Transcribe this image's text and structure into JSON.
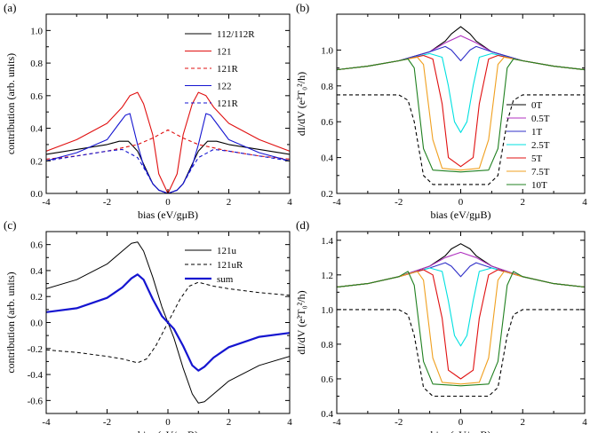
{
  "chart_data": [
    {
      "panel": "(a)",
      "type": "line",
      "xlabel": "bias (eV/gμB)",
      "ylabel": "contribution (arb. units)",
      "xlim": [
        -4,
        4
      ],
      "ylim": [
        0,
        1.1
      ],
      "xticks": [
        -4,
        -2,
        0,
        2,
        4
      ],
      "yticks": [
        0,
        0.2,
        0.4,
        0.6,
        0.8,
        1.0
      ],
      "ytick_labels": [
        "0.0",
        "0.2",
        "0.4",
        "0.6",
        "0.8",
        "1.0"
      ],
      "legend_position": "top-right",
      "series": [
        {
          "name": "112/112R",
          "color": "#000000",
          "dash": "solid",
          "x": [
            -4,
            -3,
            -2,
            -1.6,
            -1.3,
            -1,
            -0.8,
            -0.5,
            -0.3,
            0,
            0.3,
            0.5,
            0.8,
            1,
            1.3,
            1.6,
            2,
            3,
            4
          ],
          "y": [
            0.24,
            0.27,
            0.3,
            0.32,
            0.32,
            0.26,
            0.18,
            0.06,
            0.02,
            0,
            0.02,
            0.06,
            0.18,
            0.26,
            0.32,
            0.32,
            0.3,
            0.27,
            0.24
          ]
        },
        {
          "name": "121",
          "color": "#e01010",
          "dash": "solid",
          "x": [
            -4,
            -3,
            -2,
            -1.5,
            -1.25,
            -1.0,
            -0.8,
            -0.5,
            -0.3,
            0,
            0.3,
            0.5,
            0.8,
            1.0,
            1.25,
            1.5,
            2,
            3,
            4
          ],
          "y": [
            0.26,
            0.33,
            0.43,
            0.53,
            0.6,
            0.62,
            0.55,
            0.36,
            0.12,
            0,
            0.12,
            0.36,
            0.55,
            0.62,
            0.6,
            0.53,
            0.43,
            0.33,
            0.26
          ]
        },
        {
          "name": "121R",
          "color": "#e01010",
          "dash": "dashed",
          "x": [
            -4,
            -3,
            -2,
            -1,
            -0.5,
            0,
            0.5,
            1,
            2,
            3,
            4
          ],
          "y": [
            0.21,
            0.23,
            0.26,
            0.3,
            0.34,
            0.39,
            0.34,
            0.3,
            0.26,
            0.23,
            0.21
          ]
        },
        {
          "name": "122",
          "color": "#1515d0",
          "dash": "solid",
          "x": [
            -4,
            -3,
            -2,
            -1.6,
            -1.4,
            -1.25,
            -1.0,
            -0.8,
            -0.5,
            -0.3,
            0,
            0.3,
            0.5,
            0.8,
            1.0,
            1.25,
            1.4,
            1.6,
            2,
            3,
            4
          ],
          "y": [
            0.2,
            0.25,
            0.33,
            0.43,
            0.48,
            0.49,
            0.3,
            0.17,
            0.06,
            0.02,
            0,
            0.02,
            0.06,
            0.17,
            0.3,
            0.49,
            0.48,
            0.43,
            0.33,
            0.25,
            0.2
          ]
        },
        {
          "name": "121R",
          "color": "#1515d0",
          "dash": "dashed",
          "x": [
            -4,
            -3,
            -2,
            -1.5,
            -1.0,
            -0.8,
            -0.5,
            -0.3,
            0,
            0.3,
            0.5,
            0.8,
            1.0,
            1.5,
            2,
            3,
            4
          ],
          "y": [
            0.2,
            0.23,
            0.26,
            0.27,
            0.22,
            0.16,
            0.06,
            0.02,
            0,
            0.02,
            0.06,
            0.16,
            0.22,
            0.27,
            0.26,
            0.23,
            0.2
          ]
        }
      ]
    },
    {
      "panel": "(b)",
      "type": "line",
      "xlabel": "bias (eV/gμB)",
      "ylabel": "dI/dV (e²T₀²/h)",
      "xlim": [
        -4,
        4
      ],
      "ylim": [
        0.2,
        1.2
      ],
      "xticks": [
        -4,
        -2,
        0,
        2,
        4
      ],
      "yticks": [
        0.2,
        0.4,
        0.6,
        0.8,
        1.0
      ],
      "legend_position": "bottom-right",
      "series": [
        {
          "name": "0T",
          "color": "#000000",
          "dash": "solid",
          "x": [
            -4,
            -3,
            -2,
            -1,
            -0.5,
            -0.3,
            0,
            0.3,
            0.5,
            1,
            2,
            3,
            4
          ],
          "y": [
            0.89,
            0.91,
            0.94,
            0.99,
            1.05,
            1.09,
            1.13,
            1.09,
            1.05,
            0.99,
            0.94,
            0.91,
            0.89
          ]
        },
        {
          "name": "0.5T",
          "color": "#b030c0",
          "dash": "solid",
          "x": [
            -4,
            -3,
            -2,
            -1,
            -0.5,
            0,
            0.5,
            1,
            2,
            3,
            4
          ],
          "y": [
            0.89,
            0.91,
            0.94,
            0.99,
            1.04,
            1.08,
            1.04,
            0.99,
            0.94,
            0.91,
            0.89
          ]
        },
        {
          "name": "1T",
          "color": "#3030c8",
          "dash": "solid",
          "x": [
            -4,
            -3,
            -2,
            -1,
            -0.5,
            -0.3,
            0,
            0.3,
            0.5,
            1,
            2,
            3,
            4
          ],
          "y": [
            0.89,
            0.91,
            0.94,
            0.99,
            1.02,
            1.0,
            0.94,
            1.0,
            1.02,
            0.99,
            0.94,
            0.91,
            0.89
          ]
        },
        {
          "name": "2.5T",
          "color": "#00e0e0",
          "dash": "solid",
          "x": [
            -4,
            -3,
            -2,
            -1,
            -0.6,
            -0.4,
            -0.2,
            0,
            0.2,
            0.4,
            0.6,
            1,
            2,
            3,
            4
          ],
          "y": [
            0.89,
            0.91,
            0.94,
            0.98,
            0.96,
            0.8,
            0.6,
            0.54,
            0.6,
            0.8,
            0.96,
            0.98,
            0.94,
            0.91,
            0.89
          ]
        },
        {
          "name": "5T",
          "color": "#e01010",
          "dash": "solid",
          "x": [
            -4,
            -3,
            -2,
            -1.2,
            -0.9,
            -0.6,
            -0.4,
            0,
            0.4,
            0.6,
            0.9,
            1.2,
            2,
            3,
            4
          ],
          "y": [
            0.89,
            0.91,
            0.94,
            0.97,
            0.95,
            0.7,
            0.4,
            0.35,
            0.4,
            0.7,
            0.95,
            0.97,
            0.94,
            0.91,
            0.89
          ]
        },
        {
          "name": "7.5T",
          "color": "#f0a020",
          "dash": "solid",
          "x": [
            -4,
            -3,
            -2,
            -1.4,
            -1.2,
            -0.9,
            -0.6,
            0,
            0.6,
            0.9,
            1.2,
            1.4,
            2,
            3,
            4
          ],
          "y": [
            0.89,
            0.91,
            0.94,
            0.96,
            0.92,
            0.5,
            0.34,
            0.33,
            0.34,
            0.5,
            0.92,
            0.96,
            0.94,
            0.91,
            0.89
          ]
        },
        {
          "name": "10T",
          "color": "#208020",
          "dash": "solid",
          "x": [
            -4,
            -3,
            -2,
            -1.7,
            -1.5,
            -1.2,
            -0.9,
            0,
            0.9,
            1.2,
            1.5,
            1.7,
            2,
            3,
            4
          ],
          "y": [
            0.89,
            0.91,
            0.94,
            0.95,
            0.9,
            0.45,
            0.33,
            0.32,
            0.33,
            0.45,
            0.9,
            0.95,
            0.94,
            0.91,
            0.89
          ]
        },
        {
          "name": "",
          "color": "#000000",
          "dash": "dashed",
          "x": [
            -4,
            -2.5,
            -2,
            -1.7,
            -1.5,
            -1.2,
            -0.9,
            0,
            0.9,
            1.2,
            1.5,
            1.7,
            2,
            2.5,
            4
          ],
          "y": [
            0.75,
            0.75,
            0.75,
            0.72,
            0.6,
            0.3,
            0.25,
            0.25,
            0.25,
            0.3,
            0.6,
            0.72,
            0.75,
            0.75,
            0.75
          ]
        }
      ]
    },
    {
      "panel": "(c)",
      "type": "line",
      "xlabel": "bias (eV/gμB)",
      "ylabel": "contribution (arb. units)",
      "xlim": [
        -4,
        4
      ],
      "ylim": [
        -0.7,
        0.7
      ],
      "xticks": [
        -4,
        -2,
        0,
        2,
        4
      ],
      "yticks": [
        -0.6,
        -0.4,
        -0.2,
        0,
        0.2,
        0.4,
        0.6
      ],
      "ytick_labels": [
        "-0.6",
        "-0.4",
        "-0.2",
        "0.0",
        "0.2",
        "0.4",
        "0.6"
      ],
      "legend_position": "top-right",
      "series": [
        {
          "name": "121u",
          "color": "#000000",
          "dash": "solid",
          "width": 1,
          "x": [
            -4,
            -3,
            -2,
            -1.5,
            -1.2,
            -1.0,
            -0.8,
            -0.5,
            -0.2,
            0,
            0.2,
            0.5,
            0.8,
            1.0,
            1.2,
            1.5,
            2,
            3,
            4
          ],
          "y": [
            0.26,
            0.33,
            0.45,
            0.55,
            0.61,
            0.62,
            0.55,
            0.35,
            0.12,
            0,
            -0.12,
            -0.35,
            -0.55,
            -0.62,
            -0.61,
            -0.55,
            -0.45,
            -0.33,
            -0.26
          ]
        },
        {
          "name": "121uR",
          "color": "#000000",
          "dash": "dashed",
          "width": 1,
          "x": [
            -4,
            -3,
            -2,
            -1.5,
            -1,
            -0.7,
            -0.4,
            -0.2,
            0,
            0.2,
            0.4,
            0.7,
            1,
            1.5,
            2,
            3,
            4
          ],
          "y": [
            -0.21,
            -0.23,
            -0.26,
            -0.28,
            -0.31,
            -0.28,
            -0.18,
            -0.09,
            0,
            0.09,
            0.18,
            0.28,
            0.31,
            0.28,
            0.26,
            0.23,
            0.21
          ]
        },
        {
          "name": "sum",
          "color": "#1515d0",
          "dash": "solid",
          "width": 2.2,
          "x": [
            -4,
            -3,
            -2,
            -1.5,
            -1.2,
            -1.0,
            -0.8,
            -0.5,
            -0.2,
            0,
            0.2,
            0.5,
            0.8,
            1.0,
            1.2,
            1.5,
            2,
            3,
            4
          ],
          "y": [
            0.08,
            0.11,
            0.19,
            0.27,
            0.34,
            0.37,
            0.33,
            0.18,
            0.05,
            0,
            -0.05,
            -0.18,
            -0.33,
            -0.37,
            -0.34,
            -0.27,
            -0.19,
            -0.11,
            -0.08
          ]
        }
      ]
    },
    {
      "panel": "(d)",
      "type": "line",
      "xlabel": "bias (eV/gμB)",
      "ylabel": "dI/dV (e²T₀²/h)",
      "xlim": [
        -4,
        4
      ],
      "ylim": [
        0.4,
        1.45
      ],
      "xticks": [
        -4,
        -2,
        0,
        2,
        4
      ],
      "yticks": [
        0.4,
        0.6,
        0.8,
        1.0,
        1.2,
        1.4
      ],
      "series": [
        {
          "name": "0T",
          "color": "#000000",
          "dash": "solid",
          "x": [
            -4,
            -3,
            -2,
            -1,
            -0.5,
            -0.3,
            0,
            0.3,
            0.5,
            1,
            2,
            3,
            4
          ],
          "y": [
            1.13,
            1.15,
            1.19,
            1.25,
            1.31,
            1.35,
            1.38,
            1.35,
            1.31,
            1.25,
            1.19,
            1.15,
            1.13
          ]
        },
        {
          "name": "0.5T",
          "color": "#b030c0",
          "dash": "solid",
          "x": [
            -4,
            -3,
            -2,
            -1,
            -0.5,
            0,
            0.5,
            1,
            2,
            3,
            4
          ],
          "y": [
            1.13,
            1.15,
            1.19,
            1.25,
            1.3,
            1.33,
            1.3,
            1.25,
            1.19,
            1.15,
            1.13
          ]
        },
        {
          "name": "1T",
          "color": "#3030c8",
          "dash": "solid",
          "x": [
            -4,
            -3,
            -2,
            -1,
            -0.5,
            -0.3,
            0,
            0.3,
            0.5,
            1,
            2,
            3,
            4
          ],
          "y": [
            1.13,
            1.15,
            1.19,
            1.24,
            1.27,
            1.25,
            1.19,
            1.25,
            1.27,
            1.24,
            1.19,
            1.15,
            1.13
          ]
        },
        {
          "name": "2.5T",
          "color": "#00e0e0",
          "dash": "solid",
          "x": [
            -4,
            -3,
            -2,
            -1,
            -0.6,
            -0.4,
            -0.2,
            0,
            0.2,
            0.4,
            0.6,
            1,
            2,
            3,
            4
          ],
          "y": [
            1.13,
            1.15,
            1.19,
            1.24,
            1.22,
            1.05,
            0.85,
            0.79,
            0.85,
            1.05,
            1.22,
            1.24,
            1.19,
            1.15,
            1.13
          ]
        },
        {
          "name": "5T",
          "color": "#e01010",
          "dash": "solid",
          "x": [
            -4,
            -3,
            -2,
            -1.2,
            -0.9,
            -0.6,
            -0.4,
            0,
            0.4,
            0.6,
            0.9,
            1.2,
            2,
            3,
            4
          ],
          "y": [
            1.13,
            1.15,
            1.19,
            1.23,
            1.2,
            0.95,
            0.65,
            0.6,
            0.65,
            0.95,
            1.2,
            1.23,
            1.19,
            1.15,
            1.13
          ]
        },
        {
          "name": "7.5T",
          "color": "#f0a020",
          "dash": "solid",
          "x": [
            -4,
            -3,
            -2,
            -1.4,
            -1.2,
            -0.9,
            -0.6,
            0,
            0.6,
            0.9,
            1.2,
            1.4,
            2,
            3,
            4
          ],
          "y": [
            1.13,
            1.15,
            1.19,
            1.22,
            1.17,
            0.72,
            0.58,
            0.57,
            0.58,
            0.72,
            1.17,
            1.22,
            1.19,
            1.15,
            1.13
          ]
        },
        {
          "name": "10T",
          "color": "#208020",
          "dash": "solid",
          "x": [
            -4,
            -3,
            -2,
            -1.7,
            -1.5,
            -1.2,
            -0.9,
            0,
            0.9,
            1.2,
            1.5,
            1.7,
            2,
            3,
            4
          ],
          "y": [
            1.13,
            1.15,
            1.19,
            1.22,
            1.14,
            0.7,
            0.57,
            0.56,
            0.57,
            0.7,
            1.14,
            1.22,
            1.19,
            1.15,
            1.13
          ]
        },
        {
          "name": "",
          "color": "#000000",
          "dash": "dashed",
          "x": [
            -4,
            -2.5,
            -2,
            -1.7,
            -1.5,
            -1.2,
            -0.9,
            0,
            0.9,
            1.2,
            1.5,
            1.7,
            2,
            2.5,
            4
          ],
          "y": [
            1.0,
            1.0,
            1.0,
            0.97,
            0.85,
            0.55,
            0.5,
            0.5,
            0.5,
            0.55,
            0.85,
            0.97,
            1.0,
            1.0,
            1.0
          ]
        }
      ]
    }
  ]
}
